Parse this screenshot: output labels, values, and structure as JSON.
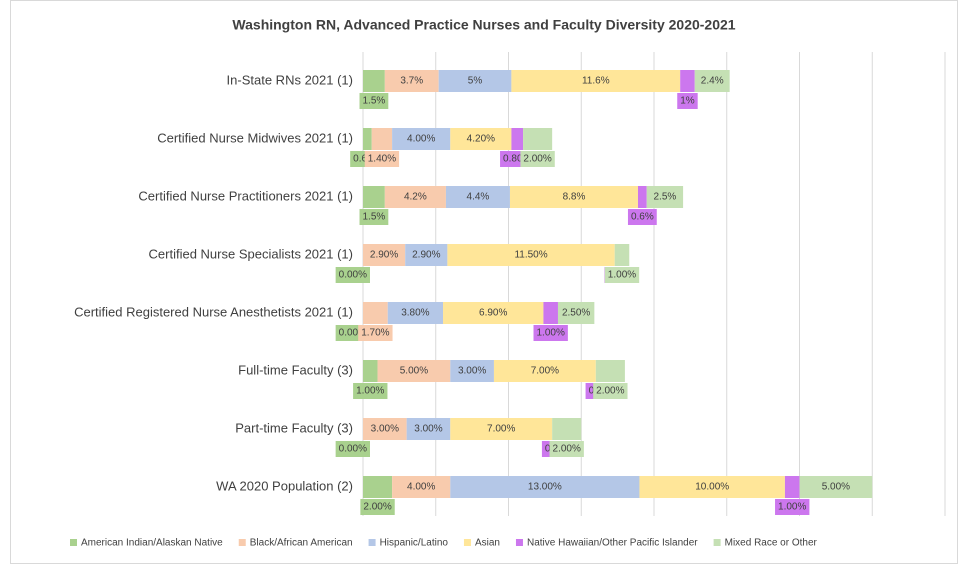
{
  "chart_data": {
    "type": "stacked-barh",
    "title": "Washington RN, Advanced Practice Nurses and Faculty Diversity 2020-2021",
    "categories": [
      "In-State RNs 2021 (1)",
      "Certified Nurse Midwives 2021 (1)",
      "Certified Nurse Practitioners 2021 (1)",
      "Certified Nurse Specialists 2021 (1)",
      "Certified Registered Nurse Anesthetists 2021 (1)",
      "Full-time Faculty (3)",
      "Part-time Faculty (3)",
      "WA 2020 Population (2)"
    ],
    "series": [
      {
        "name": "American Indian/Alaskan Native",
        "color": "#a9d18e",
        "values": [
          1.5,
          0.6,
          1.5,
          0,
          0,
          1,
          0,
          2
        ],
        "value_labels": [
          "1.5%",
          "0.60%",
          "1.5%",
          "0.00%",
          "0.00%",
          "1.00%",
          "0.00%",
          "2.00%"
        ]
      },
      {
        "name": "Black/African American",
        "color": "#f8cbad",
        "values": [
          3.7,
          1.4,
          4.2,
          2.9,
          1.7,
          5,
          3,
          4
        ],
        "value_labels": [
          "3.7%",
          "1.40%",
          "4.2%",
          "2.90%",
          "1.70%",
          "5.00%",
          "3.00%",
          "4.00%"
        ]
      },
      {
        "name": "Hispanic/Latino",
        "color": "#b4c7e7",
        "values": [
          5,
          4,
          4.4,
          2.9,
          3.8,
          3,
          3,
          13
        ],
        "value_labels": [
          "5%",
          "4.00%",
          "4.4%",
          "2.90%",
          "3.80%",
          "3.00%",
          "3.00%",
          "13.00%"
        ]
      },
      {
        "name": "Asian",
        "color": "#ffe699",
        "values": [
          11.6,
          4.2,
          8.8,
          11.5,
          6.9,
          7,
          7,
          10
        ],
        "value_labels": [
          "11.6%",
          "4.20%",
          "8.8%",
          "11.50%",
          "6.90%",
          "7.00%",
          "7.00%",
          "10.00%"
        ]
      },
      {
        "name": "Native Hawaiian/Other Pacific Islander",
        "color": "#cc77ee",
        "values": [
          1,
          0.8,
          0.6,
          0,
          1,
          0,
          0,
          1
        ],
        "value_labels": [
          "1%",
          "0.80%",
          "0.6%",
          "0%",
          "1.00%",
          "0%",
          "0%",
          "1.00%"
        ]
      },
      {
        "name": "Mixed Race or Other",
        "color": "#c5e0b4",
        "values": [
          2.4,
          2,
          2.5,
          1,
          2.5,
          2,
          2,
          5
        ],
        "value_labels": [
          "2.4%",
          "2.00%",
          "2.5%",
          "1.00%",
          "2.50%",
          "2.00%",
          "2.00%",
          "5.00%"
        ]
      }
    ],
    "xlim": [
      0,
      40
    ],
    "xticks": [
      0,
      5,
      10,
      15,
      20,
      25,
      30,
      35,
      40
    ],
    "grid": true,
    "legend": "bottom"
  }
}
